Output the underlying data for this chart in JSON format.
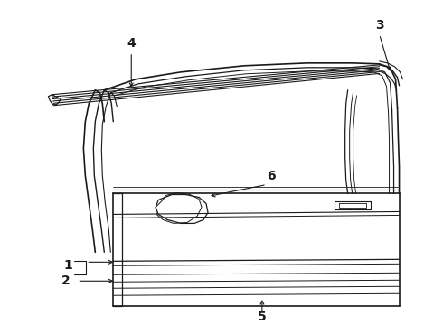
{
  "bg_color": "#ffffff",
  "line_color": "#1a1a1a",
  "fig_width": 4.9,
  "fig_height": 3.6,
  "dpi": 100,
  "label_fontsize": 10,
  "label_fontweight": "bold"
}
